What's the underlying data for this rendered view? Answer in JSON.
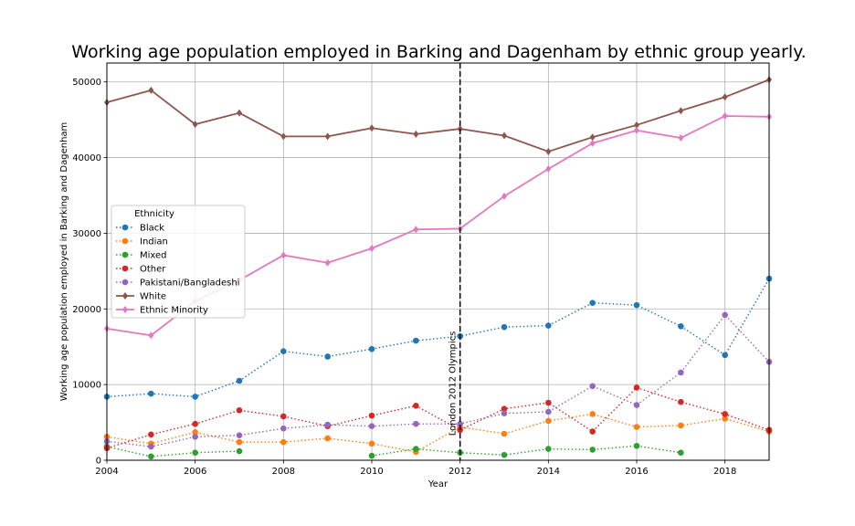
{
  "chart_data": {
    "type": "line",
    "title": "Working age population employed in Barking and Dagenham by ethnic group yearly.",
    "xlabel": "Year",
    "ylabel": "Working age population employed in Barking and Dagenham",
    "xlim": [
      2004,
      2019
    ],
    "ylim": [
      0,
      52500
    ],
    "xticks": [
      2004,
      2006,
      2008,
      2010,
      2012,
      2014,
      2016,
      2018
    ],
    "yticks": [
      0,
      10000,
      20000,
      30000,
      40000,
      50000
    ],
    "grid": true,
    "legend": {
      "title": "Ethnicity",
      "placement": "center-left"
    },
    "annotation": {
      "x": 2012,
      "text": "London 2012 Olympics"
    },
    "series": [
      {
        "name": "Black",
        "color": "#1f77b4",
        "style": "dotted",
        "marker": "circle",
        "x": [
          2004,
          2005,
          2006,
          2007,
          2008,
          2009,
          2010,
          2011,
          2012,
          2013,
          2014,
          2015,
          2016,
          2017,
          2018,
          2019
        ],
        "values": [
          8400,
          8800,
          8400,
          10500,
          14400,
          13700,
          14700,
          15800,
          16400,
          17600,
          17800,
          20800,
          20500,
          17700,
          13900,
          24000
        ]
      },
      {
        "name": "Indian",
        "color": "#ff7f0e",
        "style": "dotted",
        "marker": "circle",
        "x": [
          2004,
          2005,
          2006,
          2007,
          2008,
          2009,
          2010,
          2011,
          2012,
          2013,
          2014,
          2015,
          2016,
          2017,
          2018,
          2019
        ],
        "values": [
          3100,
          2200,
          3700,
          2400,
          2400,
          2900,
          2200,
          1100,
          4400,
          3500,
          5200,
          6100,
          4400,
          4600,
          5500,
          3800
        ]
      },
      {
        "name": "Mixed",
        "color": "#2ca02c",
        "style": "dotted",
        "marker": "circle",
        "segments": [
          {
            "x": [
              2004,
              2005,
              2006,
              2007
            ],
            "values": [
              1800,
              500,
              1000,
              1200
            ]
          },
          {
            "x": [
              2010,
              2011,
              2012,
              2013,
              2014,
              2015,
              2016,
              2017
            ],
            "values": [
              600,
              1500,
              1000,
              700,
              1500,
              1400,
              1900,
              1000
            ]
          }
        ]
      },
      {
        "name": "Other",
        "color": "#d62728",
        "style": "dotted",
        "marker": "circle",
        "x": [
          2004,
          2005,
          2006,
          2007,
          2008,
          2009,
          2010,
          2011,
          2012,
          2013,
          2014,
          2015,
          2016,
          2017,
          2018,
          2019
        ],
        "values": [
          1600,
          3400,
          4800,
          6600,
          5800,
          4500,
          5900,
          7200,
          4000,
          6800,
          7600,
          3800,
          9600,
          7700,
          6100,
          4000
        ]
      },
      {
        "name": "Pakistani/Bangladeshi",
        "color": "#9467bd",
        "style": "dotted",
        "marker": "circle",
        "x": [
          2004,
          2005,
          2006,
          2007,
          2008,
          2009,
          2010,
          2011,
          2012,
          2013,
          2014,
          2015,
          2016,
          2017,
          2018,
          2019
        ],
        "values": [
          2500,
          1800,
          3100,
          3300,
          4200,
          4700,
          4500,
          4800,
          4800,
          6200,
          6400,
          9800,
          7300,
          11600,
          19200,
          13000
        ]
      },
      {
        "name": "White",
        "color": "#8c564b",
        "style": "solid",
        "marker": "diamond",
        "x": [
          2004,
          2005,
          2006,
          2007,
          2008,
          2009,
          2010,
          2011,
          2012,
          2013,
          2014,
          2015,
          2016,
          2017,
          2018,
          2019
        ],
        "values": [
          47300,
          48900,
          44400,
          45900,
          42800,
          42800,
          43900,
          43100,
          43800,
          42900,
          40800,
          42700,
          44300,
          46200,
          48000,
          50300
        ]
      },
      {
        "name": "Ethnic Minority",
        "color": "#e377c2",
        "style": "solid",
        "marker": "diamond",
        "x": [
          2004,
          2005,
          2006,
          2007,
          2008,
          2009,
          2010,
          2011,
          2012,
          2013,
          2014,
          2015,
          2016,
          2017,
          2018,
          2019
        ],
        "values": [
          17400,
          16500,
          21000,
          23800,
          27100,
          26100,
          28000,
          30500,
          30600,
          34900,
          38500,
          41900,
          43600,
          42600,
          45500,
          45400
        ]
      }
    ]
  }
}
